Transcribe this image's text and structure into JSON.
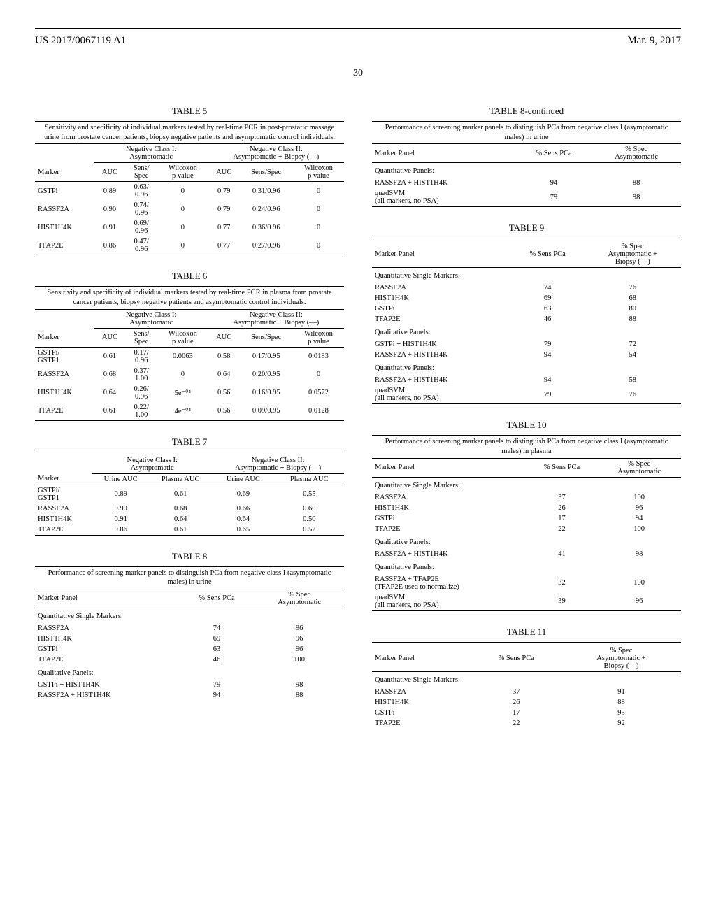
{
  "header": {
    "pub_id": "US 2017/0067119 A1",
    "pub_date": "Mar. 9, 2017",
    "page_number": "30"
  },
  "table5": {
    "title": "TABLE 5",
    "caption": "Sensitivity and specificity of individual markers tested by real-time PCR in post-prostatic massage urine from prostate cancer patients, biopsy negative patients and asymptomatic control individuals.",
    "class1_label": "Negative Class I:\nAsymptomatic",
    "class2_label": "Negative Class II:\nAsymptomatic + Biopsy (—)",
    "cols": [
      "Marker",
      "AUC",
      "Sens/\nSpec",
      "Wilcoxon\np value",
      "AUC",
      "Sens/Spec",
      "Wilcoxon\np value"
    ],
    "rows": [
      [
        "GSTPi",
        "0.89",
        "0.63/\n0.96",
        "0",
        "0.79",
        "0.31/0.96",
        "0"
      ],
      [
        "RASSF2A",
        "0.90",
        "0.74/\n0.96",
        "0",
        "0.79",
        "0.24/0.96",
        "0"
      ],
      [
        "HIST1H4K",
        "0.91",
        "0.69/\n0.96",
        "0",
        "0.77",
        "0.36/0.96",
        "0"
      ],
      [
        "TFAP2E",
        "0.86",
        "0.47/\n0.96",
        "0",
        "0.77",
        "0.27/0.96",
        "0"
      ]
    ]
  },
  "table6": {
    "title": "TABLE 6",
    "caption": "Sensitivity and specificity of individual markers tested by real-time PCR in plasma from prostate cancer patients, biopsy negative patients and asymptomatic control individuals.",
    "class1_label": "Negative Class I:\nAsymptomatic",
    "class2_label": "Negative Class II:\nAsymptomatic + Biopsy (—)",
    "cols": [
      "Marker",
      "AUC",
      "Sens/\nSpec",
      "Wilcoxon\np value",
      "AUC",
      "Sens/Spec",
      "Wilcoxon\np value"
    ],
    "rows": [
      [
        "GSTPi/\nGSTP1",
        "0.61",
        "0.17/\n0.96",
        "0.0063",
        "0.58",
        "0.17/0.95",
        "0.0183"
      ],
      [
        "RASSF2A",
        "0.68",
        "0.37/\n1.00",
        "0",
        "0.64",
        "0.20/0.95",
        "0"
      ],
      [
        "HIST1H4K",
        "0.64",
        "0.26/\n0.96",
        "5e⁻⁰⁴",
        "0.56",
        "0.16/0.95",
        "0.0572"
      ],
      [
        "TFAP2E",
        "0.61",
        "0.22/\n1.00",
        "4e⁻⁰⁴",
        "0.56",
        "0.09/0.95",
        "0.0128"
      ]
    ]
  },
  "table7": {
    "title": "TABLE 7",
    "class1_label": "Negative Class I:\nAsymptomatic",
    "class2_label": "Negative Class II:\nAsymptomatic + Biopsy (—)",
    "cols": [
      "Marker",
      "Urine AUC",
      "Plasma AUC",
      "Urine AUC",
      "Plasma AUC"
    ],
    "rows": [
      [
        "GSTPi/\nGSTP1",
        "0.89",
        "0.61",
        "0.69",
        "0.55"
      ],
      [
        "RASSF2A",
        "0.90",
        "0.68",
        "0.66",
        "0.60"
      ],
      [
        "HIST1H4K",
        "0.91",
        "0.64",
        "0.64",
        "0.50"
      ],
      [
        "TFAP2E",
        "0.86",
        "0.61",
        "0.65",
        "0.52"
      ]
    ]
  },
  "table8": {
    "title": "TABLE 8",
    "caption": "Performance of screening marker panels to distinguish PCa from negative class I (asymptomatic males) in urine",
    "cols": [
      "Marker Panel",
      "% Sens PCa",
      "% Spec\nAsymptomatic"
    ],
    "sections": [
      {
        "label": "Quantitative Single Markers:",
        "rows": [
          [
            "RASSF2A",
            "74",
            "96"
          ],
          [
            "HIST1H4K",
            "69",
            "96"
          ],
          [
            "GSTPi",
            "63",
            "96"
          ],
          [
            "TFAP2E",
            "46",
            "100"
          ]
        ]
      },
      {
        "label": "Qualitative Panels:",
        "rows": [
          [
            "GSTPi + HIST1H4K",
            "79",
            "98"
          ],
          [
            "RASSF2A + HIST1H4K",
            "94",
            "88"
          ]
        ]
      }
    ]
  },
  "table8cont": {
    "title": "TABLE 8-continued",
    "caption": "Performance of screening marker panels to distinguish PCa from negative class I (asymptomatic males) in urine",
    "cols": [
      "Marker Panel",
      "% Sens PCa",
      "% Spec\nAsymptomatic"
    ],
    "sections": [
      {
        "label": "Quantitative Panels:",
        "rows": [
          [
            "RASSF2A + HIST1H4K",
            "94",
            "88"
          ],
          [
            "quadSVM\n(all markers, no PSA)",
            "79",
            "98"
          ]
        ]
      }
    ]
  },
  "table9": {
    "title": "TABLE 9",
    "cols": [
      "Marker Panel",
      "% Sens PCa",
      "% Spec\nAsymptomatic +\nBiopsy (—)"
    ],
    "sections": [
      {
        "label": "Quantitative Single Markers:",
        "rows": [
          [
            "RASSF2A",
            "74",
            "76"
          ],
          [
            "HIST1H4K",
            "69",
            "68"
          ],
          [
            "GSTPi",
            "63",
            "80"
          ],
          [
            "TFAP2E",
            "46",
            "88"
          ]
        ]
      },
      {
        "label": "Qualitative Panels:",
        "rows": [
          [
            "GSTPi + HIST1H4K",
            "79",
            "72"
          ],
          [
            "RASSF2A + HIST1H4K",
            "94",
            "54"
          ]
        ]
      },
      {
        "label": "Quantitative Panels:",
        "rows": [
          [
            "RASSF2A + HIST1H4K",
            "94",
            "58"
          ],
          [
            "quadSVM\n(all markers, no PSA)",
            "79",
            "76"
          ]
        ]
      }
    ]
  },
  "table10": {
    "title": "TABLE 10",
    "caption": "Performance of screening marker panels to distinguish PCa from negative class I (asymptomatic males) in plasma",
    "cols": [
      "Marker Panel",
      "% Sens PCa",
      "% Spec\nAsymptomatic"
    ],
    "sections": [
      {
        "label": "Quantitative Single Markers:",
        "rows": [
          [
            "RASSF2A",
            "37",
            "100"
          ],
          [
            "HIST1H4K",
            "26",
            "96"
          ],
          [
            "GSTPi",
            "17",
            "94"
          ],
          [
            "TFAP2E",
            "22",
            "100"
          ]
        ]
      },
      {
        "label": "Qualitative Panels:",
        "rows": [
          [
            "RASSF2A + HIST1H4K",
            "41",
            "98"
          ]
        ]
      },
      {
        "label": "Quantitative Panels:",
        "rows": [
          [
            "RASSF2A + TFAP2E\n(TFAP2E used to normalize)",
            "32",
            "100"
          ],
          [
            "quadSVM\n(all markers, no PSA)",
            "39",
            "96"
          ]
        ]
      }
    ]
  },
  "table11": {
    "title": "TABLE 11",
    "cols": [
      "Marker Panel",
      "% Sens PCa",
      "% Spec\nAsymptomatic +\nBiopsy (—)"
    ],
    "sections": [
      {
        "label": "Quantitative Single Markers:",
        "rows": [
          [
            "RASSF2A",
            "37",
            "91"
          ],
          [
            "HIST1H4K",
            "26",
            "88"
          ],
          [
            "GSTPi",
            "17",
            "95"
          ],
          [
            "TFAP2E",
            "22",
            "92"
          ]
        ]
      }
    ]
  }
}
